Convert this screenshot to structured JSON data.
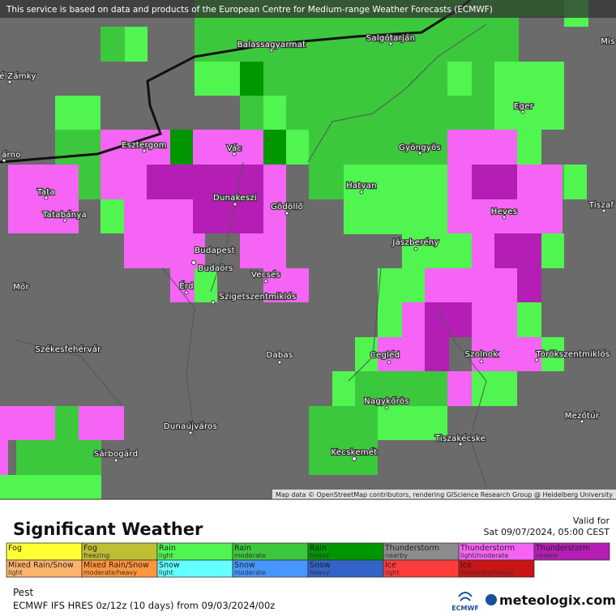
{
  "banner": "This service is based on data and products of the European Centre for Medium-range Weather Forecasts (ECMWF)",
  "attribution": "Map data © OpenStreetMap contributors, rendering GIScience Research Group @ Heidelberg University",
  "cities": [
    "Balassagyarmat",
    "Salgótarján",
    "Mis",
    "é Zámky",
    "Eger",
    "árno",
    "Esztergom",
    "Vác",
    "Gyöngyös",
    "Tata",
    "Dunakeszi",
    "Gödöllő",
    "Hatvan",
    "Tatabánya",
    "Heves",
    "Tiszaf",
    "Jászberény",
    "Budapest",
    "Budaörs",
    "Mór",
    "Vecsés",
    "Érd",
    "Szigetszentmiklós",
    "Székesfehérvár",
    "Dabas",
    "Cegléd",
    "Szolnok",
    "Törökszentmiklós",
    "Nagykőrös",
    "Mezőtúr",
    "Dunaújváros",
    "Tiszakécske",
    "Kecskemét",
    "Sárbogárd"
  ],
  "title": "Significant Weather",
  "valid_label": "Valid for",
  "valid_time": "Sat 09/07/2024, 05:00 CEST",
  "legend": [
    {
      "label": "Fog",
      "color": "#ffff33"
    },
    {
      "label": "Fog",
      "sublabel": "freezing",
      "color": "#bebe32"
    },
    {
      "label": "Rain",
      "sublabel": "light",
      "color": "#50f550"
    },
    {
      "label": "Rain",
      "sublabel": "moderate",
      "color": "#3cc83c"
    },
    {
      "label": "Rain",
      "sublabel": "heavy",
      "color": "#009600"
    },
    {
      "label": "Thunderstorm",
      "sublabel": "nearby",
      "color": "#8c8c8c"
    },
    {
      "label": "Thunderstorm",
      "sublabel": "light/moderate",
      "color": "#f564f5"
    },
    {
      "label": "Thunderstorm",
      "sublabel": "severe",
      "color": "#b41eb4"
    },
    {
      "label": "Mixed Rain/Snow",
      "sublabel": "light",
      "color": "#ffb46e"
    },
    {
      "label": "Mixed Rain/Snow",
      "sublabel": "moderate/heavy",
      "color": "#ff963c"
    },
    {
      "label": "Snow",
      "sublabel": "light",
      "color": "#64ffff"
    },
    {
      "label": "Snow",
      "sublabel": "moderate",
      "color": "#4696ff"
    },
    {
      "label": "Snow",
      "sublabel": "heavy",
      "color": "#3264c8"
    },
    {
      "label": "Ice",
      "sublabel": "light",
      "color": "#ff3c3c"
    },
    {
      "label": "Ice",
      "sublabel": "moderate/heavy",
      "color": "#c81414"
    }
  ],
  "location": "Pest",
  "model": "ECMWF IFS HRES 0z/12z (10 days) from 09/03/2024/00z",
  "logo_ecmwf": "ECMWF",
  "logo_meteologix": "meteologix.com"
}
